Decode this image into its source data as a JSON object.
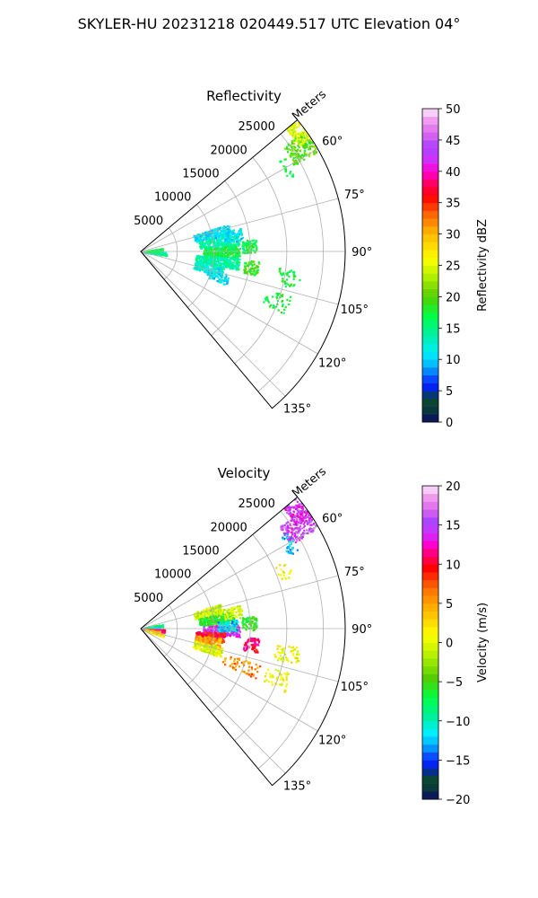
{
  "suptitle": "SKYLER-HU  20231218  020449.517 UTC Elevation 04°",
  "chart_data": [
    {
      "type": "heatmap",
      "subtype": "polar-sector-ppi",
      "title": "Reflectivity",
      "radial_axis_label": "Meters",
      "radial_range": [
        0,
        28000
      ],
      "radial_ticks": [
        5000,
        10000,
        15000,
        20000,
        25000
      ],
      "radial_tick_labels": [
        "5000",
        "10000",
        "15000",
        "20000",
        "25000"
      ],
      "azimuth_range_deg": [
        50,
        140
      ],
      "azimuth_ticks": [
        "60°",
        "75°",
        "90°",
        "105°",
        "120°",
        "135°"
      ],
      "grid": true,
      "colorbar": {
        "label": "Reflectivity dBZ",
        "range": [
          0,
          50
        ],
        "ticks": [
          "0",
          "5",
          "10",
          "15",
          "20",
          "25",
          "30",
          "35",
          "40",
          "45",
          "50"
        ],
        "stops": [
          [
            0,
            "#0b0b63"
          ],
          [
            2,
            "#0a3a3a"
          ],
          [
            4,
            "#0b4d2b"
          ],
          [
            5,
            "#0011ee"
          ],
          [
            7,
            "#0a4cff"
          ],
          [
            9,
            "#00b4ff"
          ],
          [
            11,
            "#00eeff"
          ],
          [
            14,
            "#00f0a0"
          ],
          [
            17,
            "#00ff44"
          ],
          [
            20,
            "#55cc00"
          ],
          [
            23,
            "#aaee00"
          ],
          [
            26,
            "#ffff00"
          ],
          [
            30,
            "#ffbb00"
          ],
          [
            33,
            "#ff6a00"
          ],
          [
            36,
            "#ff0000"
          ],
          [
            38,
            "#ff0060"
          ],
          [
            40,
            "#ff00d0"
          ],
          [
            42,
            "#cc33ff"
          ],
          [
            44,
            "#aa44ff"
          ],
          [
            46,
            "#dd66ee"
          ],
          [
            48,
            "#ee99ee"
          ],
          [
            50,
            "#fbe6fb"
          ]
        ]
      },
      "echo_regions": [
        {
          "az": 89,
          "r": [
            200,
            2800
          ],
          "value": 16,
          "density": 0.95
        },
        {
          "az": 95,
          "r": [
            600,
            3500
          ],
          "value": 14,
          "density": 0.9
        },
        {
          "az": 84,
          "r": [
            600,
            3000
          ],
          "value": 17,
          "density": 0.85
        },
        {
          "az": 76,
          "r": [
            7500,
            12500
          ],
          "value": 11,
          "density": 0.85
        },
        {
          "az": 83,
          "r": [
            8000,
            13500
          ],
          "value": 14,
          "density": 0.8
        },
        {
          "az": 90,
          "r": [
            8500,
            13500
          ],
          "value": 17,
          "density": 0.9
        },
        {
          "az": 97,
          "r": [
            7500,
            13500
          ],
          "value": 14,
          "density": 0.85
        },
        {
          "az": 104,
          "r": [
            7500,
            11500
          ],
          "value": 12,
          "density": 0.7
        },
        {
          "az": 108,
          "r": [
            9500,
            12500
          ],
          "value": 11,
          "density": 0.4
        },
        {
          "az": 80,
          "r": [
            11500,
            14000
          ],
          "value": 11,
          "density": 0.5
        },
        {
          "az": 87,
          "r": [
            13800,
            15800
          ],
          "value": 17,
          "density": 0.7
        },
        {
          "az": 98,
          "r": [
            14200,
            16200
          ],
          "value": 19,
          "density": 0.6
        },
        {
          "az": 57,
          "r": [
            24000,
            27800
          ],
          "value": 20,
          "density": 0.7
        },
        {
          "az": 53,
          "r": [
            26000,
            28000
          ],
          "value": 25,
          "density": 0.75
        },
        {
          "az": 60,
          "r": [
            22500,
            23500
          ],
          "value": 17,
          "density": 0.3
        },
        {
          "az": 100,
          "r": [
            19000,
            22000
          ],
          "value": 18,
          "density": 0.25
        },
        {
          "az": 110,
          "r": [
            18000,
            21500
          ],
          "value": 17,
          "density": 0.2
        }
      ]
    },
    {
      "type": "heatmap",
      "subtype": "polar-sector-ppi",
      "title": "Velocity",
      "radial_axis_label": "Meters",
      "radial_range": [
        0,
        28000
      ],
      "radial_ticks": [
        5000,
        10000,
        15000,
        20000,
        25000
      ],
      "radial_tick_labels": [
        "5000",
        "10000",
        "15000",
        "20000",
        "25000"
      ],
      "azimuth_range_deg": [
        50,
        140
      ],
      "azimuth_ticks": [
        "60°",
        "75°",
        "90°",
        "105°",
        "120°",
        "135°"
      ],
      "grid": true,
      "colorbar": {
        "label": "Velocity (m/s)",
        "range": [
          -20,
          20
        ],
        "ticks": [
          "−20",
          "−15",
          "−10",
          "−5",
          "0",
          "5",
          "10",
          "15",
          "20"
        ],
        "stops": [
          [
            -20,
            "#0b0b63"
          ],
          [
            -18.5,
            "#0a3a3a"
          ],
          [
            -17,
            "#0b4d2b"
          ],
          [
            -16,
            "#0011ee"
          ],
          [
            -14.5,
            "#0a4cff"
          ],
          [
            -13,
            "#00b4ff"
          ],
          [
            -11.5,
            "#00eeff"
          ],
          [
            -9.5,
            "#00f0a0"
          ],
          [
            -7,
            "#00ff44"
          ],
          [
            -4.5,
            "#55cc00"
          ],
          [
            -2,
            "#aaee00"
          ],
          [
            1,
            "#ffff00"
          ],
          [
            4,
            "#ffbb00"
          ],
          [
            7,
            "#ff6a00"
          ],
          [
            9.5,
            "#ff0000"
          ],
          [
            11,
            "#ff0060"
          ],
          [
            12.5,
            "#ff00d0"
          ],
          [
            14,
            "#cc33ff"
          ],
          [
            15.5,
            "#aa44ff"
          ],
          [
            17,
            "#dd66ee"
          ],
          [
            18.5,
            "#ee99ee"
          ],
          [
            20,
            "#fbe6fb"
          ]
        ]
      },
      "echo_regions": [
        {
          "az": 80,
          "r": [
            200,
            3000
          ],
          "value": -8,
          "density": 0.85
        },
        {
          "az": 86,
          "r": [
            200,
            2500
          ],
          "value": -11,
          "density": 0.85
        },
        {
          "az": 95,
          "r": [
            300,
            3200
          ],
          "value": 11,
          "density": 0.95
        },
        {
          "az": 100,
          "r": [
            500,
            2600
          ],
          "value": 5,
          "density": 0.85
        },
        {
          "az": 106,
          "r": [
            900,
            3200
          ],
          "value": 2,
          "density": 0.75
        },
        {
          "az": 76,
          "r": [
            7500,
            11500
          ],
          "value": -1,
          "density": 0.8
        },
        {
          "az": 83,
          "r": [
            8000,
            13000
          ],
          "value": -6,
          "density": 0.8
        },
        {
          "az": 91,
          "r": [
            8500,
            13500
          ],
          "value": 14,
          "density": 0.9
        },
        {
          "az": 96,
          "r": [
            7500,
            11500
          ],
          "value": 10,
          "density": 0.9
        },
        {
          "az": 100,
          "r": [
            7500,
            11000
          ],
          "value": 5,
          "density": 0.85
        },
        {
          "az": 106,
          "r": [
            7500,
            11500
          ],
          "value": 0,
          "density": 0.7
        },
        {
          "az": 88,
          "r": [
            10500,
            13200
          ],
          "value": -12,
          "density": 0.7
        },
        {
          "az": 80,
          "r": [
            11500,
            14000
          ],
          "value": -1,
          "density": 0.5
        },
        {
          "az": 87,
          "r": [
            13800,
            15800
          ],
          "value": -6,
          "density": 0.7
        },
        {
          "az": 98,
          "r": [
            14200,
            16200
          ],
          "value": 11,
          "density": 0.6
        },
        {
          "az": 110,
          "r": [
            12000,
            17000
          ],
          "value": 6,
          "density": 0.2
        },
        {
          "az": 57,
          "r": [
            23500,
            27800
          ],
          "value": 15,
          "density": 0.7
        },
        {
          "az": 53,
          "r": [
            25500,
            28000
          ],
          "value": 14,
          "density": 0.75
        },
        {
          "az": 60,
          "r": [
            22500,
            24000
          ],
          "value": -12,
          "density": 0.35
        },
        {
          "az": 68,
          "r": [
            20000,
            22000
          ],
          "value": 1,
          "density": 0.15
        },
        {
          "az": 100,
          "r": [
            18500,
            22000
          ],
          "value": 1,
          "density": 0.25
        },
        {
          "az": 110,
          "r": [
            18000,
            21500
          ],
          "value": 1,
          "density": 0.2
        }
      ]
    }
  ]
}
